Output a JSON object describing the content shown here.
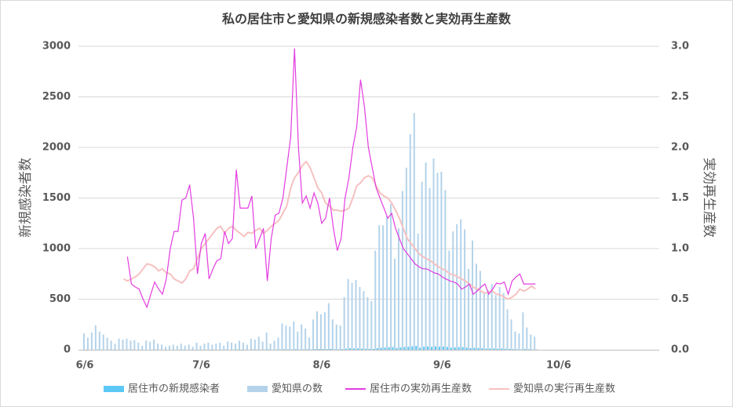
{
  "chart_data": {
    "type": "bar-line",
    "title": "私の居住市と愛知県の新規感染者数と実効再生産数",
    "ylabel": "新規感染者数",
    "y2label": "実効再生産数",
    "ylim": [
      0,
      3000
    ],
    "yticks": [
      0,
      500,
      1000,
      1500,
      2000,
      2500,
      3000
    ],
    "y2lim": [
      0,
      3
    ],
    "y2ticks": [
      {
        "value": 0,
        "label": "0.0"
      },
      0.5,
      {
        "value": 1,
        "label": "1.0"
      },
      1.5,
      {
        "value": 2,
        "label": "2.0"
      },
      2.5,
      {
        "value": 3,
        "label": "3.0"
      }
    ],
    "grid": true,
    "legend": "bottom",
    "categories": [
      "6/6",
      null,
      null,
      null,
      null,
      null,
      null,
      null,
      null,
      null,
      null,
      null,
      null,
      null,
      null,
      null,
      null,
      null,
      null,
      null,
      null,
      null,
      null,
      null,
      null,
      null,
      null,
      null,
      null,
      null,
      "7/6",
      null,
      null,
      null,
      null,
      null,
      null,
      null,
      null,
      null,
      null,
      null,
      null,
      null,
      null,
      null,
      null,
      null,
      null,
      null,
      null,
      null,
      null,
      null,
      null,
      null,
      null,
      null,
      null,
      null,
      null,
      "8/6",
      null,
      null,
      null,
      null,
      null,
      null,
      null,
      null,
      null,
      null,
      null,
      null,
      null,
      null,
      null,
      null,
      null,
      null,
      null,
      null,
      null,
      null,
      null,
      null,
      null,
      null,
      null,
      null,
      null,
      null,
      "9/6",
      null,
      null,
      null,
      null,
      null,
      null,
      null,
      null,
      null,
      null,
      null,
      null,
      null,
      null,
      null,
      null,
      null,
      null,
      null,
      null,
      null,
      null,
      null,
      null,
      null,
      null,
      null,
      null,
      null,
      "10/6",
      null,
      null,
      null,
      null,
      null,
      null,
      null,
      null,
      null,
      null,
      null,
      null,
      null,
      null,
      null,
      null,
      null,
      null,
      null,
      null,
      null,
      null,
      null,
      null,
      null
    ],
    "series": [
      {
        "name": "居住市の新規感染者",
        "kind": "bar",
        "color": "#5bc8f5",
        "values": [
          2,
          1,
          0,
          3,
          1,
          0,
          2,
          1,
          0,
          1,
          0,
          1,
          2,
          0,
          1,
          0,
          0,
          1,
          2,
          1,
          0,
          1,
          0,
          0,
          1,
          2,
          0,
          1,
          0,
          1,
          1,
          0,
          2,
          1,
          0,
          1,
          2,
          0,
          1,
          3,
          2,
          1,
          0,
          3,
          2,
          1,
          2,
          4,
          1,
          2,
          3,
          5,
          4,
          3,
          6,
          2,
          4,
          5,
          3,
          6,
          8,
          7,
          6,
          9,
          5,
          4,
          6,
          10,
          14,
          12,
          13,
          11,
          10,
          9,
          8,
          16,
          20,
          22,
          25,
          27,
          18,
          24,
          28,
          30,
          34,
          38,
          20,
          30,
          33,
          28,
          34,
          30,
          32,
          28,
          20,
          24,
          25,
          26,
          22,
          16,
          20,
          17,
          15,
          11,
          12,
          13,
          10,
          12,
          10,
          8,
          6,
          4,
          3,
          7,
          5,
          3,
          3,
          null,
          null,
          null,
          null,
          null,
          null,
          null,
          null,
          null,
          null,
          null,
          null,
          null,
          null,
          null,
          null,
          null,
          null,
          null,
          null,
          null,
          null,
          null,
          null,
          null,
          null,
          null,
          null,
          null,
          null,
          null
        ]
      },
      {
        "name": "愛知県の数",
        "kind": "bar",
        "color": "#b4d3ea",
        "values": [
          160,
          120,
          170,
          240,
          180,
          150,
          120,
          90,
          60,
          110,
          100,
          110,
          90,
          95,
          70,
          40,
          90,
          80,
          100,
          60,
          50,
          30,
          40,
          50,
          40,
          60,
          40,
          50,
          30,
          70,
          40,
          60,
          70,
          50,
          60,
          70,
          40,
          80,
          70,
          60,
          90,
          70,
          50,
          110,
          100,
          130,
          80,
          170,
          60,
          90,
          120,
          260,
          240,
          230,
          280,
          180,
          250,
          210,
          120,
          300,
          380,
          350,
          370,
          460,
          300,
          250,
          240,
          520,
          700,
          660,
          690,
          620,
          580,
          520,
          480,
          980,
          1230,
          1230,
          1320,
          1440,
          900,
          1200,
          1570,
          1800,
          2130,
          2340,
          1150,
          1660,
          1850,
          1600,
          1890,
          1750,
          1760,
          1580,
          980,
          1170,
          1240,
          1290,
          1190,
          800,
          1080,
          850,
          780,
          560,
          590,
          650,
          540,
          620,
          560,
          400,
          300,
          180,
          160,
          370,
          220,
          150,
          130,
          null,
          null,
          null,
          null,
          null,
          null,
          null,
          null,
          null,
          null,
          null,
          null,
          null,
          null,
          null,
          null,
          null,
          null,
          null,
          null,
          null,
          null,
          null,
          null,
          null,
          null,
          null,
          null,
          null,
          null,
          null
        ]
      },
      {
        "name": "居住市の実効再生産数",
        "kind": "line",
        "axis": "y2",
        "color": "#e23de0",
        "values": [
          null,
          null,
          null,
          null,
          null,
          null,
          null,
          null,
          null,
          null,
          null,
          0.92,
          0.65,
          0.62,
          0.6,
          0.5,
          0.42,
          0.55,
          0.67,
          0.6,
          0.55,
          0.7,
          1.0,
          1.17,
          1.17,
          1.48,
          1.5,
          1.63,
          1.3,
          0.75,
          1.05,
          1.15,
          0.7,
          0.8,
          0.88,
          0.9,
          1.17,
          1.05,
          1.1,
          1.78,
          1.4,
          1.4,
          1.4,
          1.52,
          1.0,
          1.1,
          1.2,
          0.68,
          1.1,
          1.33,
          1.35,
          1.5,
          1.8,
          2.1,
          2.98,
          2.0,
          1.45,
          1.52,
          1.4,
          1.55,
          1.45,
          1.25,
          1.3,
          1.5,
          1.2,
          0.98,
          1.1,
          1.5,
          1.7,
          2.0,
          2.2,
          2.67,
          2.4,
          2.0,
          1.8,
          1.6,
          1.5,
          1.4,
          1.3,
          1.35,
          1.2,
          1.1,
          1.0,
          0.95,
          0.9,
          0.85,
          0.82,
          0.8,
          0.8,
          0.78,
          0.76,
          0.75,
          0.72,
          0.7,
          0.68,
          0.67,
          0.65,
          0.6,
          0.62,
          0.65,
          0.55,
          0.58,
          0.62,
          0.65,
          0.55,
          0.6,
          0.66,
          0.65,
          0.67,
          0.55,
          0.68,
          0.72,
          0.75,
          0.65,
          0.65,
          0.65,
          0.65,
          null,
          null,
          null,
          null,
          null,
          null,
          null,
          null,
          null,
          null,
          null,
          null,
          null,
          null,
          null,
          null,
          null,
          null,
          null,
          null,
          null,
          null,
          null,
          null,
          null,
          null,
          null,
          null,
          null,
          null,
          null
        ]
      },
      {
        "name": "愛知県の実行再生産数",
        "kind": "line",
        "axis": "y2",
        "color": "#f6c1c1",
        "values": [
          null,
          null,
          null,
          null,
          null,
          null,
          null,
          null,
          null,
          null,
          0.7,
          0.68,
          0.7,
          0.72,
          0.75,
          0.8,
          0.85,
          0.84,
          0.82,
          0.78,
          0.8,
          0.76,
          0.75,
          0.7,
          0.68,
          0.66,
          0.7,
          0.78,
          0.8,
          0.9,
          1.0,
          1.05,
          1.1,
          1.15,
          1.2,
          1.22,
          1.15,
          1.2,
          1.22,
          1.18,
          1.15,
          1.12,
          1.16,
          1.15,
          1.18,
          1.2,
          1.15,
          1.18,
          1.22,
          1.25,
          1.28,
          1.35,
          1.42,
          1.6,
          1.7,
          1.75,
          1.82,
          1.86,
          1.8,
          1.7,
          1.6,
          1.55,
          1.45,
          1.42,
          1.38,
          1.38,
          1.37,
          1.38,
          1.4,
          1.5,
          1.62,
          1.65,
          1.7,
          1.72,
          1.7,
          1.62,
          1.55,
          1.52,
          1.5,
          1.45,
          1.38,
          1.3,
          1.2,
          1.1,
          1.05,
          1.0,
          0.95,
          0.92,
          0.9,
          0.88,
          0.85,
          0.82,
          0.8,
          0.78,
          0.75,
          0.74,
          0.72,
          0.7,
          0.68,
          0.65,
          0.62,
          0.6,
          0.58,
          0.56,
          0.57,
          0.58,
          0.55,
          0.54,
          0.52,
          0.5,
          0.52,
          0.55,
          0.6,
          0.58,
          0.6,
          0.63,
          0.6,
          null,
          null,
          null,
          null,
          null,
          null,
          null,
          null,
          null,
          null,
          null,
          null,
          null,
          null,
          null,
          null,
          null,
          null,
          null,
          null,
          null,
          null,
          null,
          null,
          null,
          null,
          null,
          null,
          null,
          null,
          null
        ]
      }
    ]
  }
}
